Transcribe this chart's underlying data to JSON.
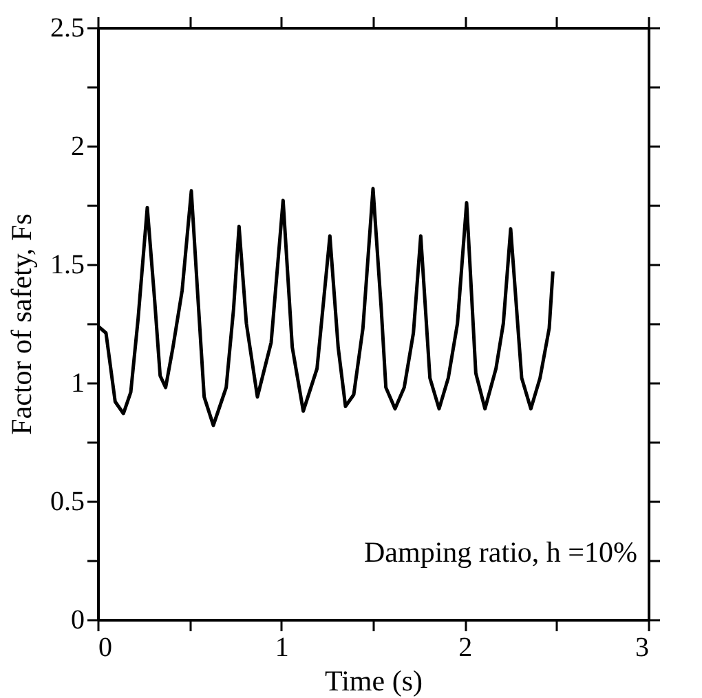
{
  "chart_data": {
    "type": "line",
    "xlabel": "Time (s)",
    "ylabel": "Factor of safety,  Fs",
    "annotations": [
      "Damping ratio,  h =10%"
    ],
    "xlim": [
      0,
      3
    ],
    "ylim": [
      0,
      2.5
    ],
    "xticks": [
      0,
      {
        "value": 0.5,
        "label": null
      },
      1,
      {
        "value": 1.5,
        "label": null
      },
      2,
      {
        "value": 2.5,
        "label": null
      },
      3
    ],
    "yticks": [
      0,
      {
        "value": 0.25,
        "label": null
      },
      0.5,
      {
        "value": 0.75,
        "label": null
      },
      1,
      {
        "value": 1.25,
        "label": null
      },
      1.5,
      {
        "value": 1.75,
        "label": null
      },
      2,
      {
        "value": 2.25,
        "label": null
      },
      2.5
    ],
    "grid": false,
    "marker": "none",
    "line_style": "solid",
    "series": [
      {
        "color": "#000000",
        "x": [
          0,
          0.045,
          0.095,
          0.14,
          0.18,
          0.22,
          0.27,
          0.31,
          0.34,
          0.37,
          0.41,
          0.46,
          0.51,
          0.545,
          0.58,
          0.63,
          0.7,
          0.74,
          0.77,
          0.81,
          0.87,
          0.945,
          1.01,
          1.06,
          1.12,
          1.195,
          1.265,
          1.31,
          1.35,
          1.395,
          1.445,
          1.5,
          1.545,
          1.57,
          1.62,
          1.67,
          1.72,
          1.76,
          1.81,
          1.86,
          1.91,
          1.96,
          2.01,
          2.06,
          2.11,
          2.17,
          2.21,
          2.25,
          2.31,
          2.36,
          2.41,
          2.46,
          2.48
        ],
        "values": [
          1.24,
          1.21,
          0.92,
          0.87,
          0.96,
          1.27,
          1.74,
          1.35,
          1.03,
          0.98,
          1.15,
          1.39,
          1.81,
          1.37,
          0.94,
          0.82,
          0.98,
          1.31,
          1.66,
          1.25,
          0.94,
          1.17,
          1.77,
          1.15,
          0.88,
          1.06,
          1.62,
          1.15,
          0.9,
          0.95,
          1.23,
          1.82,
          1.31,
          0.98,
          0.89,
          0.98,
          1.21,
          1.62,
          1.02,
          0.89,
          1.02,
          1.25,
          1.76,
          1.04,
          0.89,
          1.06,
          1.25,
          1.65,
          1.02,
          0.89,
          1.02,
          1.23,
          1.47
        ]
      }
    ]
  }
}
